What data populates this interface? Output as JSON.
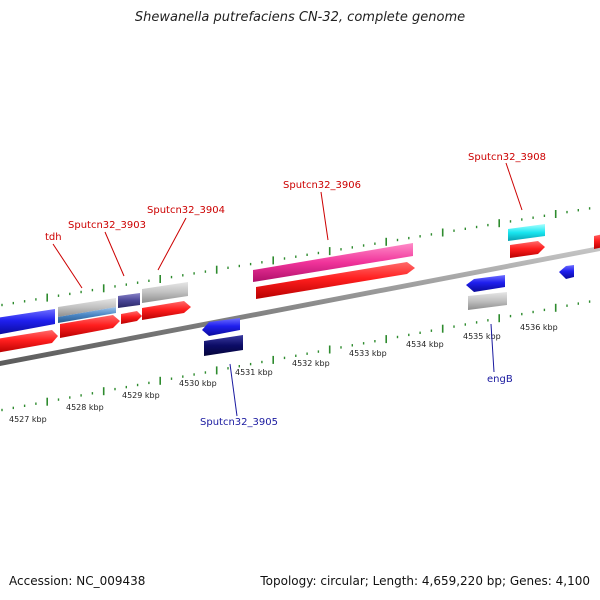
{
  "title": "Shewanella putrefaciens CN-32, complete genome",
  "footer": {
    "accession": "Accession: NC_009438",
    "summary": "Topology: circular; Length: 4,659,220 bp; Genes: 4,100"
  },
  "map": {
    "range_kbp": [
      4526.5,
      4536.6
    ],
    "scale_labels": [
      "4527 kbp",
      "4528 kbp",
      "4529 kbp",
      "4530 kbp",
      "4531 kbp",
      "4532 kbp",
      "4533 kbp",
      "4534 kbp",
      "4535 kbp",
      "4536 kbp"
    ],
    "colors": {
      "backbone": "#8a8a8a",
      "tick": "#2e8b2e",
      "label_top": "#cc0000",
      "label_bottom": "#1a1aa0"
    },
    "labels": [
      {
        "text": "tdh",
        "strand": "top"
      },
      {
        "text": "Sputcn32_3903",
        "strand": "top"
      },
      {
        "text": "Sputcn32_3904",
        "strand": "top"
      },
      {
        "text": "Sputcn32_3906",
        "strand": "top"
      },
      {
        "text": "Sputcn32_3908",
        "strand": "top"
      },
      {
        "text": "Sputcn32_3905",
        "strand": "bottom"
      },
      {
        "text": "engB",
        "strand": "bottom"
      }
    ]
  }
}
